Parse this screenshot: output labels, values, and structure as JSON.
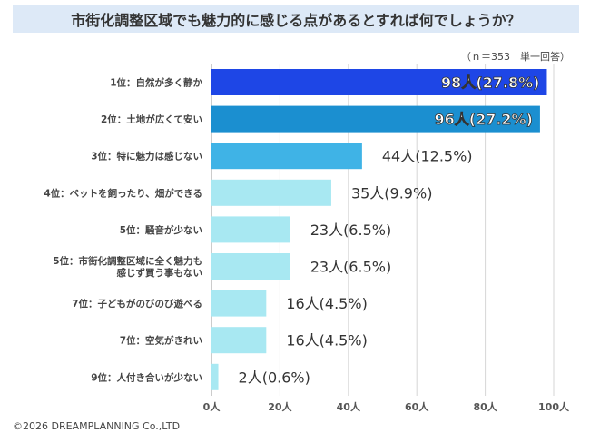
{
  "title": "市街化調整区域でも魅力的に感じる点があるとすれば何でしょうか？",
  "note": "（ｎ＝353　単一回答）",
  "footer": "©2026 DREAMPLANNING Co.,LTD",
  "chart_data": {
    "type": "bar",
    "orientation": "horizontal",
    "title": "市街化調整区域でも魅力的に感じる点があるとすれば何でしょうか？",
    "categories": [
      [
        "1位：自然が多く静か"
      ],
      [
        "2位：土地が広くて安い"
      ],
      [
        "3位：特に魅力は感じない"
      ],
      [
        "4位：ペットを飼ったり、畑ができる"
      ],
      [
        "5位：騒音が少ない"
      ],
      [
        "5位：市街化調整区域に全く魅力も",
        "感じず買う事もない"
      ],
      [
        "7位：子どもがのびのび遊べる"
      ],
      [
        "7位：空気がきれい"
      ],
      [
        "9位：人付き合いが少ない"
      ]
    ],
    "values": [
      98,
      96,
      44,
      35,
      23,
      23,
      16,
      16,
      2
    ],
    "labels": [
      "98人(27.8%)",
      "96人(27.2%)",
      "44人(12.5%)",
      "35人(9.9%)",
      "23人(6.5%)",
      "23人(6.5%)",
      "16人(4.5%)",
      "16人(4.5%)",
      "2人(0.6%)"
    ],
    "xlim": [
      0,
      100
    ],
    "xticks": [
      0,
      20,
      40,
      60,
      80,
      100
    ],
    "xtick_labels": [
      "0人",
      "20人",
      "40人",
      "60人",
      "80人",
      "100人"
    ],
    "grid": "vertical",
    "colors": [
      "#1e46e6",
      "#1b8fd0",
      "#3fb3e6",
      "#a8e8f2",
      "#a8e8f2",
      "#a8e8f2",
      "#a8e8f2",
      "#a8e8f2",
      "#a8e8f2"
    ],
    "label_inside": [
      true,
      true,
      false,
      false,
      false,
      false,
      false,
      false,
      false
    ]
  }
}
